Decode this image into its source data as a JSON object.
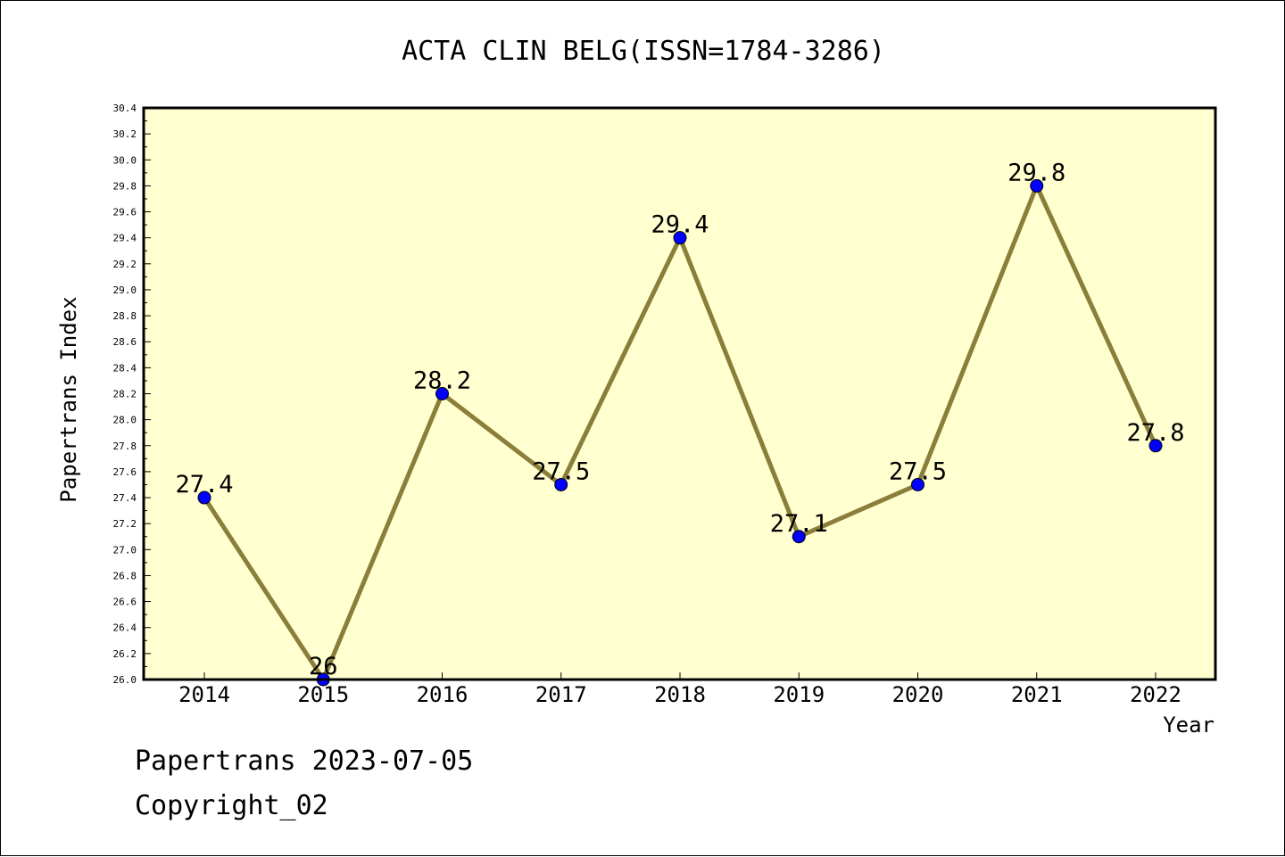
{
  "chart_data": {
    "type": "line",
    "title": "ACTA CLIN BELG(ISSN=1784-3286)",
    "xlabel": "Year",
    "ylabel": "Papertrans Index",
    "categories": [
      "2014",
      "2015",
      "2016",
      "2017",
      "2018",
      "2019",
      "2020",
      "2021",
      "2022"
    ],
    "series": [
      {
        "values": [
          27.4,
          26,
          28.2,
          27.5,
          29.4,
          27.1,
          27.5,
          29.8,
          27.8
        ],
        "data_labels": [
          "27.4",
          "26",
          "28.2",
          "27.5",
          "29.4",
          "27.1",
          "27.5",
          "29.8",
          "27.8"
        ]
      }
    ],
    "ylim": [
      26.0,
      30.4
    ],
    "yticks": [
      "26.0",
      "26.2",
      "26.4",
      "26.6",
      "26.8",
      "27.0",
      "27.2",
      "27.4",
      "27.6",
      "27.8",
      "28.0",
      "28.2",
      "28.4",
      "28.6",
      "28.8",
      "29.0",
      "29.2",
      "29.4",
      "29.6",
      "29.8",
      "30.0",
      "30.2",
      "30.4"
    ],
    "grid": false,
    "legend": "none",
    "colors": {
      "plot_background": "#ffffd0",
      "line": "#8b7d3a",
      "marker": "#0000ff",
      "axes": "#000000"
    }
  },
  "footer": {
    "line1": "Papertrans 2023-07-05",
    "line2": "Copyright_02"
  }
}
